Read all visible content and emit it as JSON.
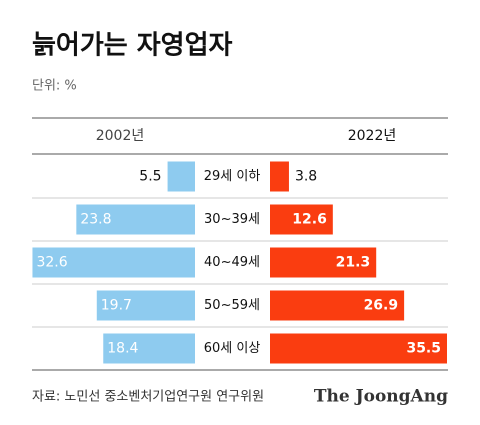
{
  "chart_data": {
    "type": "butterfly",
    "title": "늙어가는 자영업자",
    "unit": "단위: %",
    "categories": [
      "29세 이하",
      "30~39세",
      "40~49세",
      "50~59세",
      "60세 이상"
    ],
    "series": [
      {
        "name": "2002년",
        "color": "#8ecbef",
        "values": [
          5.5,
          23.8,
          32.6,
          19.7,
          18.4
        ]
      },
      {
        "name": "2022년",
        "color": "#fa3d10",
        "values": [
          3.8,
          12.6,
          21.3,
          26.9,
          35.5
        ]
      }
    ],
    "source": "자료: 노민선 중소벤처기업연구원 연구위원",
    "brand": "The JoongAng"
  }
}
